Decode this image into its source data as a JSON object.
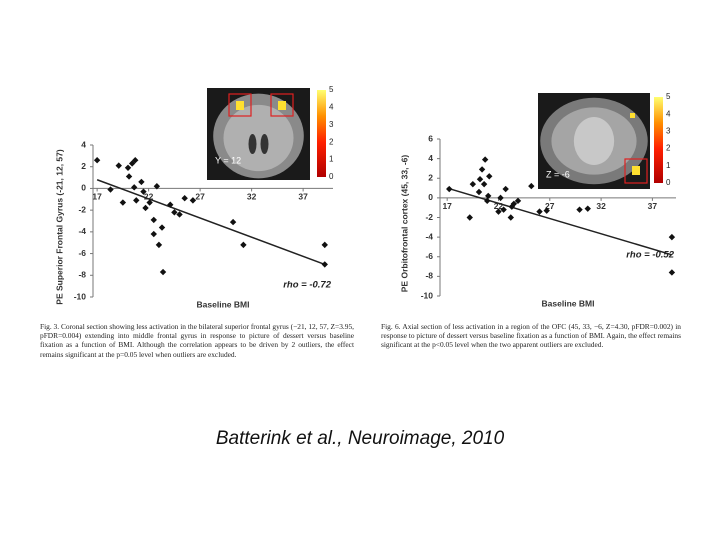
{
  "chart_data": [
    {
      "type": "scatter",
      "xlabel": "Baseline BMI",
      "ylabel": "PE Superior Frontal Gyrus (-21, 12, 57)",
      "xlim": [
        16.6,
        39.9
      ],
      "ylim": [
        -10,
        4
      ],
      "xticks": [
        17,
        22,
        27,
        32,
        37
      ],
      "yticks": [
        4,
        2,
        0,
        -2,
        -4,
        -6,
        -8,
        -10
      ],
      "color": "#111111",
      "x": [
        17,
        18.3,
        19.1,
        19.5,
        20,
        20.1,
        20.4,
        20.6,
        20.7,
        20.8,
        21.3,
        21.5,
        21.7,
        22.1,
        22.5,
        22.5,
        22.8,
        23,
        23.3,
        23.4,
        24.1,
        24.5,
        25,
        25.5,
        26.3,
        30.2,
        31.2,
        39.1,
        39.1
      ],
      "y": [
        2.6,
        -0.1,
        2.1,
        -1.3,
        1.9,
        1.1,
        2.3,
        0.1,
        2.6,
        -1.1,
        0.6,
        -0.3,
        -1.8,
        -1.3,
        -2.9,
        -4.2,
        0.2,
        -5.2,
        -3.6,
        -7.7,
        -1.5,
        -2.2,
        -2.4,
        -0.9,
        -1.1,
        -3.1,
        -5.2,
        -5.2,
        -7.0
      ],
      "fit": {
        "x": [
          17,
          39.1
        ],
        "y": [
          0.8,
          -7.0
        ]
      },
      "annotation": "rho = -0.72",
      "slice_label": "Y = 12",
      "colorbar_ticks": [
        5,
        4,
        3,
        2,
        1,
        0
      ]
    },
    {
      "type": "scatter",
      "xlabel": "Baseline BMI",
      "ylabel": "PE Orbitofrontal cortex (45, 33, -6)",
      "xlim": [
        16.3,
        39.3
      ],
      "ylim": [
        -10,
        6
      ],
      "xticks": [
        17,
        22,
        27,
        32,
        37
      ],
      "yticks": [
        6,
        4,
        2,
        0,
        -2,
        -4,
        -6,
        -8,
        -10
      ],
      "color": "#111111",
      "x": [
        17.2,
        19.2,
        19.5,
        20.1,
        20.2,
        20.4,
        20.6,
        20.7,
        20.9,
        21,
        21.1,
        22,
        22.2,
        22.5,
        22.7,
        23.2,
        23.3,
        23.5,
        23.9,
        25.2,
        26,
        26.7,
        29.9,
        30.7,
        38.9,
        38.9
      ],
      "y": [
        0.9,
        -2,
        1.4,
        0.6,
        1.9,
        2.9,
        1.4,
        3.9,
        -0.3,
        0.2,
        2.2,
        -1.4,
        0,
        -1.2,
        0.9,
        -2,
        -0.9,
        -0.6,
        -0.3,
        1.2,
        -1.4,
        -1.3,
        -1.2,
        -1.1,
        -4,
        -7.6
      ],
      "fit": {
        "x": [
          17,
          38.9
        ],
        "y": [
          1.0,
          -5.8
        ]
      },
      "annotation": "rho = -0.52",
      "slice_label": "Z = -6",
      "colorbar_ticks": [
        5,
        4,
        3,
        2,
        1,
        0
      ]
    }
  ],
  "captions": [
    "Fig. 3. Coronal section showing less activation in the bilateral superior frontal gyrus (−21, 12, 57, Z=3.95, pFDR=0.004) extending into middle frontal gyrus in response to picture of dessert versus baseline fixation as a function of BMI. Although the correlation appears to be driven by 2 outliers, the effect remains significant at the p=0.05 level when outliers are excluded.",
    "Fig. 6. Axial section of less activation in a region of the OFC (45, 33, −6, Z=4.30, pFDR=0.002) in response to picture of dessert versus baseline fixation as a function of BMI. Again, the effect remains significant at the p<0.05 level when the two apparent outliers are excluded."
  ],
  "citation": "Batterink et al., Neuroimage, 2010"
}
